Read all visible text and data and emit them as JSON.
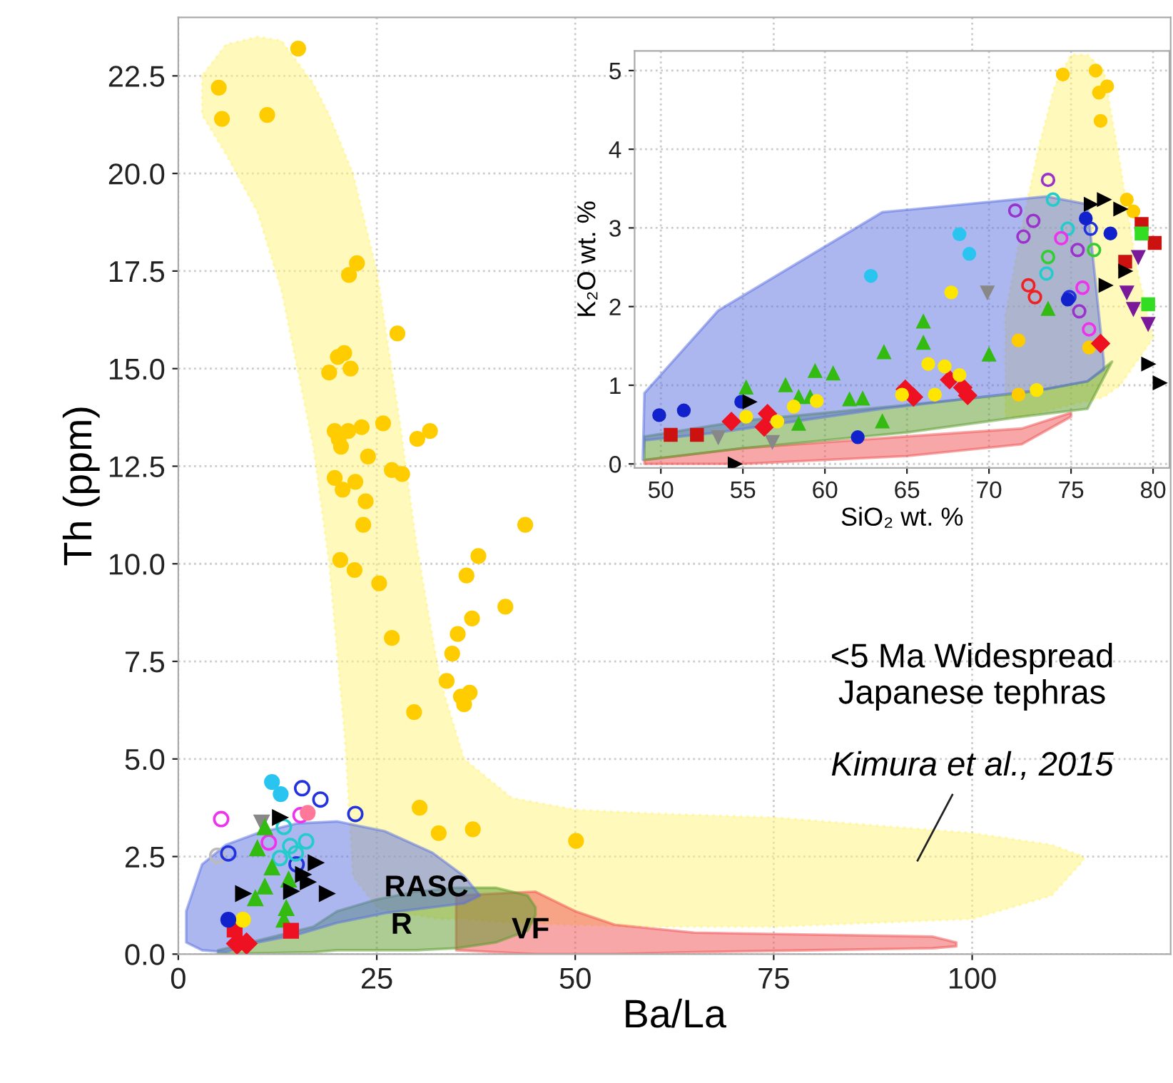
{
  "chart_data": [
    {
      "type": "scatter",
      "xlabel": "Ba/La",
      "ylabel": "Th (ppm)",
      "xlim": [
        0,
        125
      ],
      "ylim": [
        0,
        24
      ],
      "xticks": [
        0,
        25,
        50,
        75,
        100
      ],
      "yticks": [
        {
          "value": 0,
          "label": "0.0"
        },
        {
          "value": 2.5,
          "label": "2.5"
        },
        {
          "value": 5,
          "label": "5.0"
        },
        {
          "value": 7.5,
          "label": "7.5"
        },
        {
          "value": 10,
          "label": "10.0"
        },
        {
          "value": 12.5,
          "label": "12.5"
        },
        {
          "value": 15,
          "label": "15.0"
        },
        {
          "value": 17.5,
          "label": "17.5"
        },
        {
          "value": 20,
          "label": "20.0"
        },
        {
          "value": 22.5,
          "label": "22.5"
        }
      ],
      "grid": true,
      "legend": false,
      "annotations": [
        "<5 Ma Widespread\nJapanese tephras",
        "Kimura et al., 2015",
        "RASC",
        "R",
        "VF"
      ],
      "series": [
        {
          "type": "area",
          "color": "#fff37a",
          "line_style": "dotted",
          "x": [
            3,
            6,
            10,
            13,
            17,
            19,
            21,
            22,
            25,
            28,
            30,
            33,
            36,
            42,
            50,
            60,
            75,
            100,
            110,
            114
          ],
          "upper": [
            22.5,
            23.3,
            23.5,
            23.4,
            22.3,
            21.5,
            20.5,
            20,
            17.5,
            13.5,
            10.5,
            7,
            5,
            4,
            3.7,
            3.6,
            3.5,
            3.1,
            2.8,
            2.5
          ],
          "lower": [
            21.5,
            20.5,
            19,
            17,
            13,
            10,
            5.5,
            2,
            1.2,
            1,
            1,
            0.9,
            0.9,
            0.8,
            0.75,
            0.7,
            0.7,
            0.9,
            1.5,
            2.4
          ],
          "values": [
            null,
            null,
            null,
            null,
            null,
            null,
            null,
            null,
            null,
            null,
            null,
            null,
            null,
            null,
            null,
            null,
            null,
            null,
            null,
            null
          ]
        },
        {
          "type": "area",
          "color": "#f05050",
          "line_style": "solid",
          "x": [
            35,
            45,
            50,
            55,
            65,
            80,
            95,
            98
          ],
          "upper": [
            1.5,
            1.6,
            1.1,
            0.75,
            0.55,
            0.5,
            0.45,
            0.3
          ],
          "lower": [
            0.1,
            0,
            0,
            0,
            0.05,
            0.1,
            0.15,
            0.2
          ],
          "values": [
            null,
            null,
            null,
            null,
            null,
            null,
            null,
            null
          ]
        },
        {
          "type": "area",
          "color": "#5a9a2a",
          "line_style": "solid",
          "x": [
            5,
            17,
            20,
            25,
            30,
            35,
            40,
            44,
            45
          ],
          "upper": [
            0.1,
            0.7,
            1.1,
            1.4,
            1.6,
            1.7,
            1.7,
            1.5,
            1.2
          ],
          "lower": [
            0,
            0.05,
            0.1,
            0.1,
            0.1,
            0.15,
            0.3,
            0.6,
            1.0
          ],
          "values": [
            null,
            null,
            null,
            null,
            null,
            null,
            null,
            null,
            null
          ]
        },
        {
          "type": "area",
          "color": "#5a70e0",
          "line_style": "solid",
          "x": [
            1,
            3,
            6,
            10,
            15,
            20,
            26,
            32,
            36,
            38
          ],
          "upper": [
            1.1,
            2.3,
            2.8,
            3.1,
            3.35,
            3.4,
            3.15,
            2.6,
            2.0,
            1.5
          ],
          "lower": [
            0.3,
            0.1,
            0.05,
            0.3,
            0.5,
            0.8,
            1.05,
            1.2,
            1.3,
            1.5
          ],
          "values": [
            null,
            null,
            null,
            null,
            null,
            null,
            null,
            null,
            null,
            null
          ]
        },
        {
          "color": "#ffcc00",
          "marker": "circle",
          "x": [
            5.1,
            5.5,
            11.2,
            15.1,
            22.5,
            21.5,
            27.6,
            20.1,
            20.9,
            21.7,
            19.0,
            19.7,
            20.2,
            20.5,
            21.4,
            23.1,
            25.8,
            23.9,
            30.1,
            31.7,
            19.7,
            22.3,
            20.7,
            26.9,
            28.2,
            23.6,
            23.3,
            43.7,
            20.4,
            22.2,
            25.3,
            37.8,
            36.3,
            41.2,
            37.0,
            35.2,
            26.9,
            34.5,
            33.8,
            35.6,
            36.7,
            36.0,
            29.7,
            30.4,
            32.8,
            37.1,
            50.1
          ],
          "values": [
            22.2,
            21.4,
            21.5,
            23.2,
            17.7,
            17.4,
            15.9,
            15.3,
            15.4,
            15.0,
            14.9,
            13.4,
            13.2,
            13.0,
            13.4,
            13.5,
            13.6,
            12.75,
            13.2,
            13.4,
            12.2,
            12.1,
            11.9,
            12.4,
            12.3,
            11.6,
            11.0,
            11.0,
            10.1,
            9.84,
            9.5,
            10.2,
            9.7,
            8.9,
            8.6,
            8.2,
            8.1,
            7.7,
            7.0,
            6.6,
            6.7,
            6.4,
            6.2,
            3.75,
            3.1,
            3.2,
            2.9
          ]
        },
        {
          "color": "#bbbbbb",
          "marker": "circle-open",
          "x": [
            4.9
          ],
          "values": [
            2.52
          ]
        },
        {
          "color": "#2233dd",
          "marker": "circle-open",
          "x": [
            15.6,
            17.9,
            22.3,
            6.3,
            14.9
          ],
          "values": [
            4.25,
            3.96,
            3.59,
            2.58,
            2.3
          ]
        },
        {
          "color": "#ee33ee",
          "marker": "circle-open",
          "x": [
            5.4,
            11.4,
            15.4
          ],
          "values": [
            3.46,
            2.86,
            3.56
          ]
        },
        {
          "color": "#22cccc",
          "marker": "circle-open",
          "x": [
            13.3,
            14.1,
            16.1,
            12.8,
            14.8
          ],
          "values": [
            3.26,
            2.77,
            2.89,
            2.46,
            2.58
          ]
        },
        {
          "color": "#29c5f0",
          "marker": "circle",
          "x": [
            11.8,
            12.9
          ],
          "values": [
            4.41,
            4.1
          ]
        },
        {
          "color": "#ff7799",
          "marker": "circle",
          "x": [
            16.3
          ],
          "values": [
            3.62
          ]
        },
        {
          "color": "#888888",
          "marker": "triangle-down",
          "x": [
            10.5
          ],
          "values": [
            3.37
          ]
        },
        {
          "color": "#33bb11",
          "marker": "triangle",
          "x": [
            10.9,
            9.96,
            11.8,
            10.9,
            9.7,
            13.9,
            13.6,
            13.3
          ],
          "values": [
            3.25,
            2.71,
            2.22,
            1.73,
            1.43,
            1.91,
            1.18,
            0.88
          ]
        },
        {
          "color": "#000000",
          "marker": "triangle-right",
          "x": [
            12.8,
            17.3,
            15.7,
            16.3,
            8.15,
            18.7,
            14.2
          ],
          "values": [
            3.5,
            2.34,
            2.04,
            1.85,
            1.55,
            1.55,
            1.61
          ]
        },
        {
          "color": "#ee1122",
          "marker": "square",
          "x": [
            7.1,
            14.2
          ],
          "values": [
            0.63,
            0.6
          ]
        },
        {
          "color": "#ee1122",
          "marker": "diamond",
          "x": [
            7.4,
            8.6
          ],
          "values": [
            0.27,
            0.27
          ]
        },
        {
          "color": "#ffe600",
          "marker": "circle",
          "x": [
            8.15
          ],
          "values": [
            0.88
          ]
        },
        {
          "color": "#1122cc",
          "marker": "circle",
          "x": [
            6.3
          ],
          "values": [
            0.88
          ]
        }
      ]
    },
    {
      "type": "scatter",
      "xlabel": "SiO₂ wt. %",
      "ylabel": "K₂O wt. %",
      "xlim": [
        48.4,
        81
      ],
      "ylim": [
        -0.05,
        5.25
      ],
      "xticks": [
        50,
        55,
        60,
        65,
        70,
        75,
        80
      ],
      "yticks": [
        0,
        1,
        2,
        3,
        4,
        5
      ],
      "grid": true,
      "legend": false,
      "series": [
        {
          "type": "area",
          "color": "#fff37a",
          "line_style": "dotted",
          "x": [
            71,
            72,
            73,
            74,
            75,
            76,
            77,
            78,
            79,
            80
          ],
          "upper": [
            1.9,
            3.0,
            4.0,
            4.8,
            5.2,
            5.2,
            5.0,
            3.8,
            2.5,
            1.6
          ],
          "lower": [
            0.6,
            0.6,
            0.65,
            0.7,
            0.75,
            0.8,
            0.85,
            1.0,
            1.3,
            1.6
          ],
          "values": [
            null,
            null,
            null,
            null,
            null,
            null,
            null,
            null,
            null,
            null
          ]
        },
        {
          "type": "area",
          "color": "#f05050",
          "line_style": "solid",
          "x": [
            49,
            55,
            65,
            72,
            75
          ],
          "upper": [
            0.05,
            0.2,
            0.35,
            0.45,
            0.65
          ],
          "lower": [
            0.0,
            0.0,
            0.1,
            0.25,
            0.6
          ],
          "values": [
            null,
            null,
            null,
            null,
            null
          ]
        },
        {
          "type": "area",
          "color": "#5a9a2a",
          "line_style": "solid",
          "x": [
            49,
            55,
            65,
            72,
            76,
            77.5
          ],
          "upper": [
            0.35,
            0.55,
            0.75,
            0.9,
            1.05,
            1.3
          ],
          "lower": [
            0.05,
            0.2,
            0.4,
            0.6,
            0.7,
            1.3
          ],
          "values": [
            null,
            null,
            null,
            null,
            null,
            null
          ]
        },
        {
          "type": "area",
          "color": "#5a70e0",
          "line_style": "solid",
          "x": [
            48.9,
            49,
            53.5,
            63.5,
            73.5,
            76,
            77
          ],
          "upper": [
            0.05,
            0.9,
            1.95,
            3.2,
            3.4,
            3.3,
            1.3
          ],
          "lower": [
            0.05,
            0.3,
            0.4,
            0.7,
            0.95,
            1.05,
            1.2
          ],
          "values": [
            null,
            null,
            null,
            null,
            null,
            null,
            null
          ]
        },
        {
          "color": "#ffcc00",
          "marker": "circle",
          "x": [
            74.5,
            76.5,
            77.2,
            76.7,
            76.8,
            78.4,
            78.8,
            71.8,
            71.8,
            76.1
          ],
          "values": [
            4.95,
            5.0,
            4.8,
            4.72,
            4.36,
            3.36,
            3.21,
            1.57,
            0.88,
            1.48
          ]
        },
        {
          "color": "#9933cc",
          "marker": "circle-open",
          "x": [
            73.6,
            71.6,
            72.1,
            72.7,
            75.5,
            75.4
          ],
          "values": [
            3.61,
            3.22,
            2.89,
            3.09,
            1.94,
            2.72
          ]
        },
        {
          "color": "#ee2222",
          "marker": "circle-open",
          "x": [
            72.8,
            72.4
          ],
          "values": [
            2.12,
            2.27
          ]
        },
        {
          "color": "#2233dd",
          "marker": "circle-open",
          "x": [
            74.9,
            76.2
          ],
          "values": [
            2.12,
            2.99
          ]
        },
        {
          "color": "#22cccc",
          "marker": "circle-open",
          "x": [
            73.9,
            74.8,
            73.5
          ],
          "values": [
            3.36,
            2.99,
            2.42
          ]
        },
        {
          "color": "#33cc33",
          "marker": "circle-open",
          "x": [
            73.6,
            76.4
          ],
          "values": [
            2.63,
            2.72
          ]
        },
        {
          "color": "#ee33ee",
          "marker": "circle-open",
          "x": [
            76.1,
            74.4,
            75.7
          ],
          "values": [
            1.71,
            2.87,
            2.24
          ]
        },
        {
          "color": "#29c5f0",
          "marker": "circle",
          "x": [
            62.8,
            68.2,
            68.8
          ],
          "values": [
            2.39,
            2.92,
            2.67
          ]
        },
        {
          "color": "#888888",
          "marker": "triangle-down",
          "x": [
            69.9,
            53.5,
            56.8
          ],
          "values": [
            2.18,
            0.34,
            0.28
          ]
        },
        {
          "color": "#33bb11",
          "marker": "triangle",
          "x": [
            55.2,
            57.6,
            59.4,
            60.5,
            58.4,
            59.1,
            58.4,
            61.5,
            62.3,
            63.5,
            63.6,
            66.0,
            66.0,
            70.0,
            73.6
          ],
          "values": [
            0.97,
            1.0,
            1.18,
            1.15,
            0.85,
            0.85,
            0.51,
            0.82,
            0.83,
            0.54,
            1.42,
            1.81,
            1.54,
            1.39,
            1.97
          ]
        },
        {
          "color": "#ee1122",
          "marker": "diamond",
          "x": [
            54.3,
            56.5,
            56.3,
            64.9,
            65.4,
            67.6,
            68.4,
            68.7,
            76.8
          ],
          "values": [
            0.54,
            0.64,
            0.47,
            0.95,
            0.85,
            1.07,
            0.97,
            0.87,
            1.53
          ]
        },
        {
          "color": "#ffe600",
          "marker": "circle",
          "x": [
            67.7,
            55.2,
            57.1,
            58.1,
            59.5,
            64.7,
            66.3,
            67.3,
            66.7,
            68.2,
            72.9
          ],
          "values": [
            2.18,
            0.6,
            0.54,
            0.73,
            0.8,
            0.88,
            1.27,
            1.24,
            0.88,
            1.13,
            0.94
          ]
        },
        {
          "color": "#1122cc",
          "marker": "circle",
          "x": [
            49.9,
            51.4,
            54.9,
            62.0,
            75.9,
            77.4,
            74.8
          ],
          "values": [
            0.62,
            0.68,
            0.79,
            0.34,
            3.12,
            2.93,
            2.09
          ]
        },
        {
          "color": "#cc1111",
          "marker": "square",
          "x": [
            50.6,
            52.2,
            79.3,
            80.1,
            78.3
          ],
          "values": [
            0.37,
            0.37,
            3.05,
            2.81,
            2.57
          ]
        },
        {
          "color": "#000000",
          "marker": "triangle-right",
          "x": [
            55.4,
            54.5,
            79.7,
            80.4,
            76.2,
            77.0,
            78.0,
            77.1,
            78.3
          ],
          "values": [
            0.79,
            0.0,
            1.27,
            1.03,
            3.3,
            3.36,
            3.24,
            2.27,
            2.45
          ]
        },
        {
          "color": "#7a1a9a",
          "marker": "triangle-down",
          "x": [
            78.4,
            79.1,
            79.7,
            78.8
          ],
          "values": [
            2.18,
            2.63,
            1.78,
            1.97
          ]
        },
        {
          "color": "#33dd22",
          "marker": "square",
          "x": [
            79.3
          ],
          "values": [
            2.93
          ]
        },
        {
          "color": "#33dd22",
          "marker": "square",
          "x": [
            79.7
          ],
          "values": [
            2.03
          ]
        }
      ]
    }
  ]
}
